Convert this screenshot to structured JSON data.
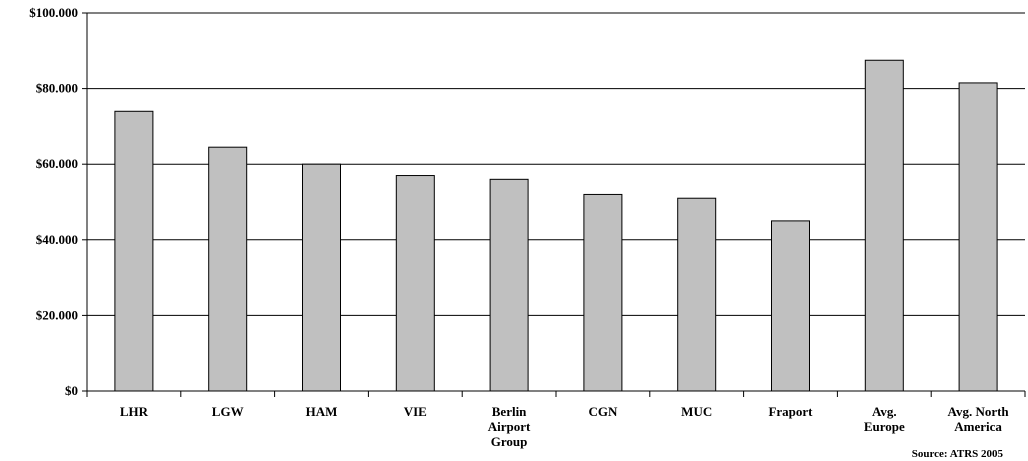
{
  "chart_data": {
    "type": "bar",
    "categories": [
      [
        "LHR"
      ],
      [
        "LGW"
      ],
      [
        "HAM"
      ],
      [
        "VIE"
      ],
      [
        "Berlin",
        "Airport",
        "Group"
      ],
      [
        "CGN"
      ],
      [
        "MUC"
      ],
      [
        "Fraport"
      ],
      [
        "Avg.",
        "Europe"
      ],
      [
        "Avg. North",
        "America"
      ]
    ],
    "values": [
      74,
      64.5,
      60,
      57,
      56,
      52,
      51,
      45,
      87.5,
      81.5
    ],
    "ylim": [
      0,
      100
    ],
    "yticks": [
      0,
      20,
      40,
      60,
      80,
      100
    ],
    "yticklabels": [
      "$0",
      "$20.000",
      "$40.000",
      "$60.000",
      "$80.000",
      "$100.000"
    ],
    "grid": true,
    "bar_color": "#c0c0c0",
    "source_note": "Source: ATRS 2005"
  }
}
